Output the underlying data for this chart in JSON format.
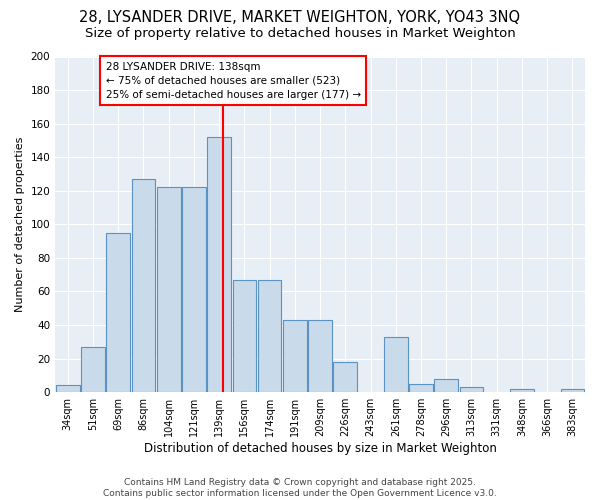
{
  "title1": "28, LYSANDER DRIVE, MARKET WEIGHTON, YORK, YO43 3NQ",
  "title2": "Size of property relative to detached houses in Market Weighton",
  "xlabel": "Distribution of detached houses by size in Market Weighton",
  "ylabel": "Number of detached properties",
  "bin_edges": [
    25.5,
    42.5,
    59.5,
    76.5,
    93.5,
    110.5,
    127.5,
    144.5,
    161.5,
    178.5,
    195.5,
    212.5,
    229.5,
    246.5,
    263.5,
    280.5,
    297.5,
    314.5,
    331.5,
    348.5,
    365.5,
    382.5
  ],
  "bar_heights": [
    4,
    27,
    95,
    127,
    122,
    122,
    152,
    67,
    67,
    43,
    43,
    18,
    0,
    33,
    5,
    8,
    3,
    0,
    2,
    0,
    2
  ],
  "tick_labels": [
    "34sqm",
    "51sqm",
    "69sqm",
    "86sqm",
    "104sqm",
    "121sqm",
    "139sqm",
    "156sqm",
    "174sqm",
    "191sqm",
    "209sqm",
    "226sqm",
    "243sqm",
    "261sqm",
    "278sqm",
    "296sqm",
    "313sqm",
    "331sqm",
    "348sqm",
    "366sqm",
    "383sqm"
  ],
  "bar_facecolor": "#c9daea",
  "bar_edgecolor": "#5b92c4",
  "red_line_x": 138.5,
  "annotation_text_line1": "28 LYSANDER DRIVE: 138sqm",
  "annotation_text_line2": "← 75% of detached houses are smaller (523)",
  "annotation_text_line3": "25% of semi-detached houses are larger (177) →",
  "ylim": [
    0,
    200
  ],
  "yticks": [
    0,
    20,
    40,
    60,
    80,
    100,
    120,
    140,
    160,
    180,
    200
  ],
  "bg_color": "#e8eef5",
  "grid_color": "#ffffff",
  "fig_facecolor": "#ffffff",
  "footer_text": "Contains HM Land Registry data © Crown copyright and database right 2025.\nContains public sector information licensed under the Open Government Licence v3.0.",
  "title1_fontsize": 10.5,
  "title2_fontsize": 9.5,
  "xlabel_fontsize": 8.5,
  "ylabel_fontsize": 8,
  "tick_fontsize": 7,
  "annotation_fontsize": 7.5,
  "footer_fontsize": 6.5
}
